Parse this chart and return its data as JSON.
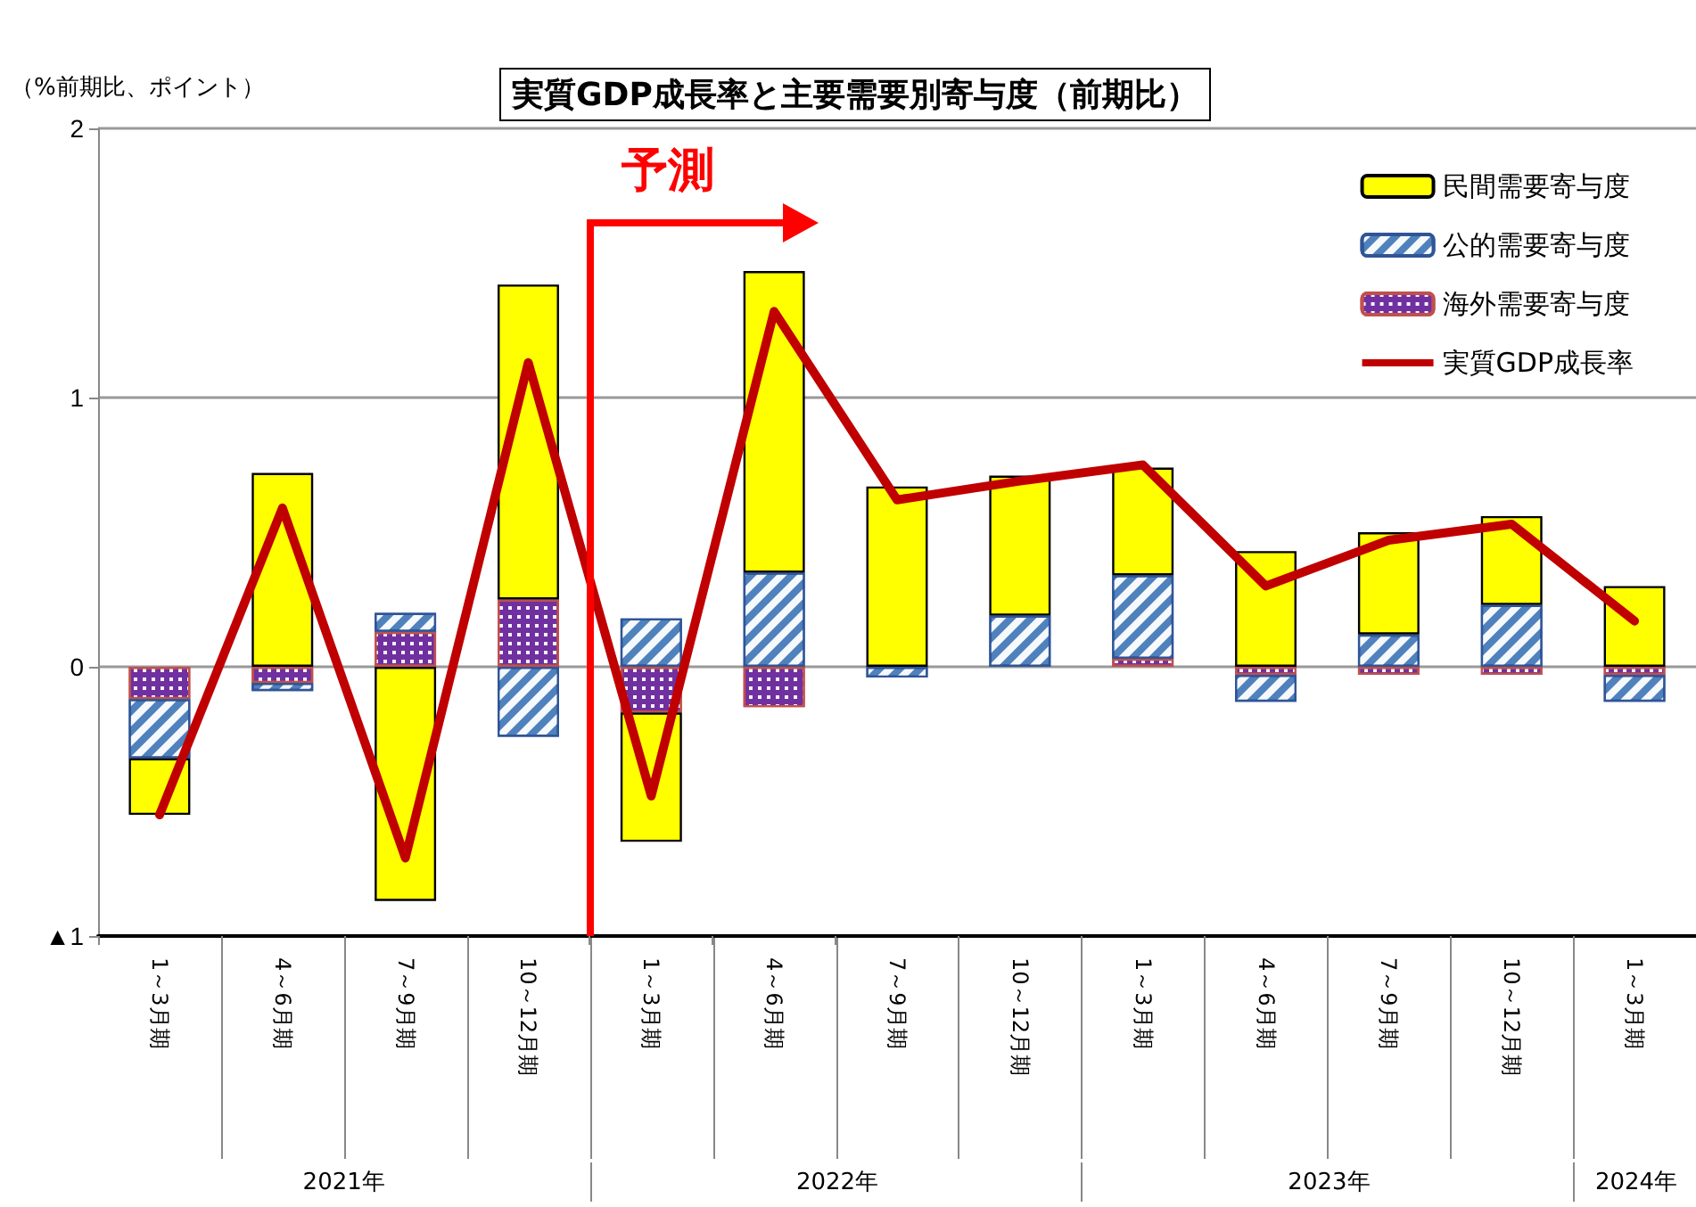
{
  "chart_data": {
    "type": "bar",
    "title": "実質GDP成長率と主要需要別寄与度（前期比）",
    "ylabel": "（%前期比、ポイント）",
    "categories": [
      "1～3月期",
      "4～6月期",
      "7～9月期",
      "10～12月期",
      "1～3月期",
      "4～6月期",
      "7～9月期",
      "10～12月期",
      "1～3月期",
      "4～6月期",
      "7～9月期",
      "10～12月期",
      "1～3月期"
    ],
    "stacked": true,
    "series": [
      {
        "name": "海外需要寄与度",
        "color": "#7030a0",
        "values": [
          -0.12,
          -0.06,
          0.13,
          0.25,
          -0.17,
          -0.15,
          null,
          null,
          0.03,
          -0.03,
          -0.03,
          -0.03,
          -0.03
        ]
      },
      {
        "name": "公的需要寄与度",
        "color": "#4f81bd",
        "values": [
          -0.22,
          -0.03,
          0.07,
          -0.26,
          0.18,
          0.35,
          -0.04,
          0.19,
          0.31,
          -0.1,
          0.12,
          0.23,
          -0.1
        ]
      },
      {
        "name": "民間需要寄与度",
        "color": "#ffff00",
        "values": [
          -0.21,
          0.72,
          -0.87,
          1.17,
          -0.48,
          1.12,
          0.67,
          0.52,
          0.4,
          0.43,
          0.38,
          0.33,
          0.3
        ]
      },
      {
        "name": "実質GDP成長率",
        "type": "line",
        "color": "#c00000",
        "values": [
          -0.55,
          0.59,
          -0.71,
          1.13,
          -0.48,
          1.32,
          0.62,
          0.69,
          0.75,
          0.3,
          0.47,
          0.53,
          0.17
        ]
      }
    ],
    "ylim": [
      -1,
      2
    ],
    "yticks": [
      {
        "value": -1,
        "label": "▲1"
      },
      0,
      1,
      2
    ],
    "grid": "y",
    "legend": "top right",
    "marker": "none",
    "line_style": "solid",
    "annotations": [
      "予測",
      "2021年",
      "2022年",
      "2023年",
      "2024年"
    ]
  }
}
